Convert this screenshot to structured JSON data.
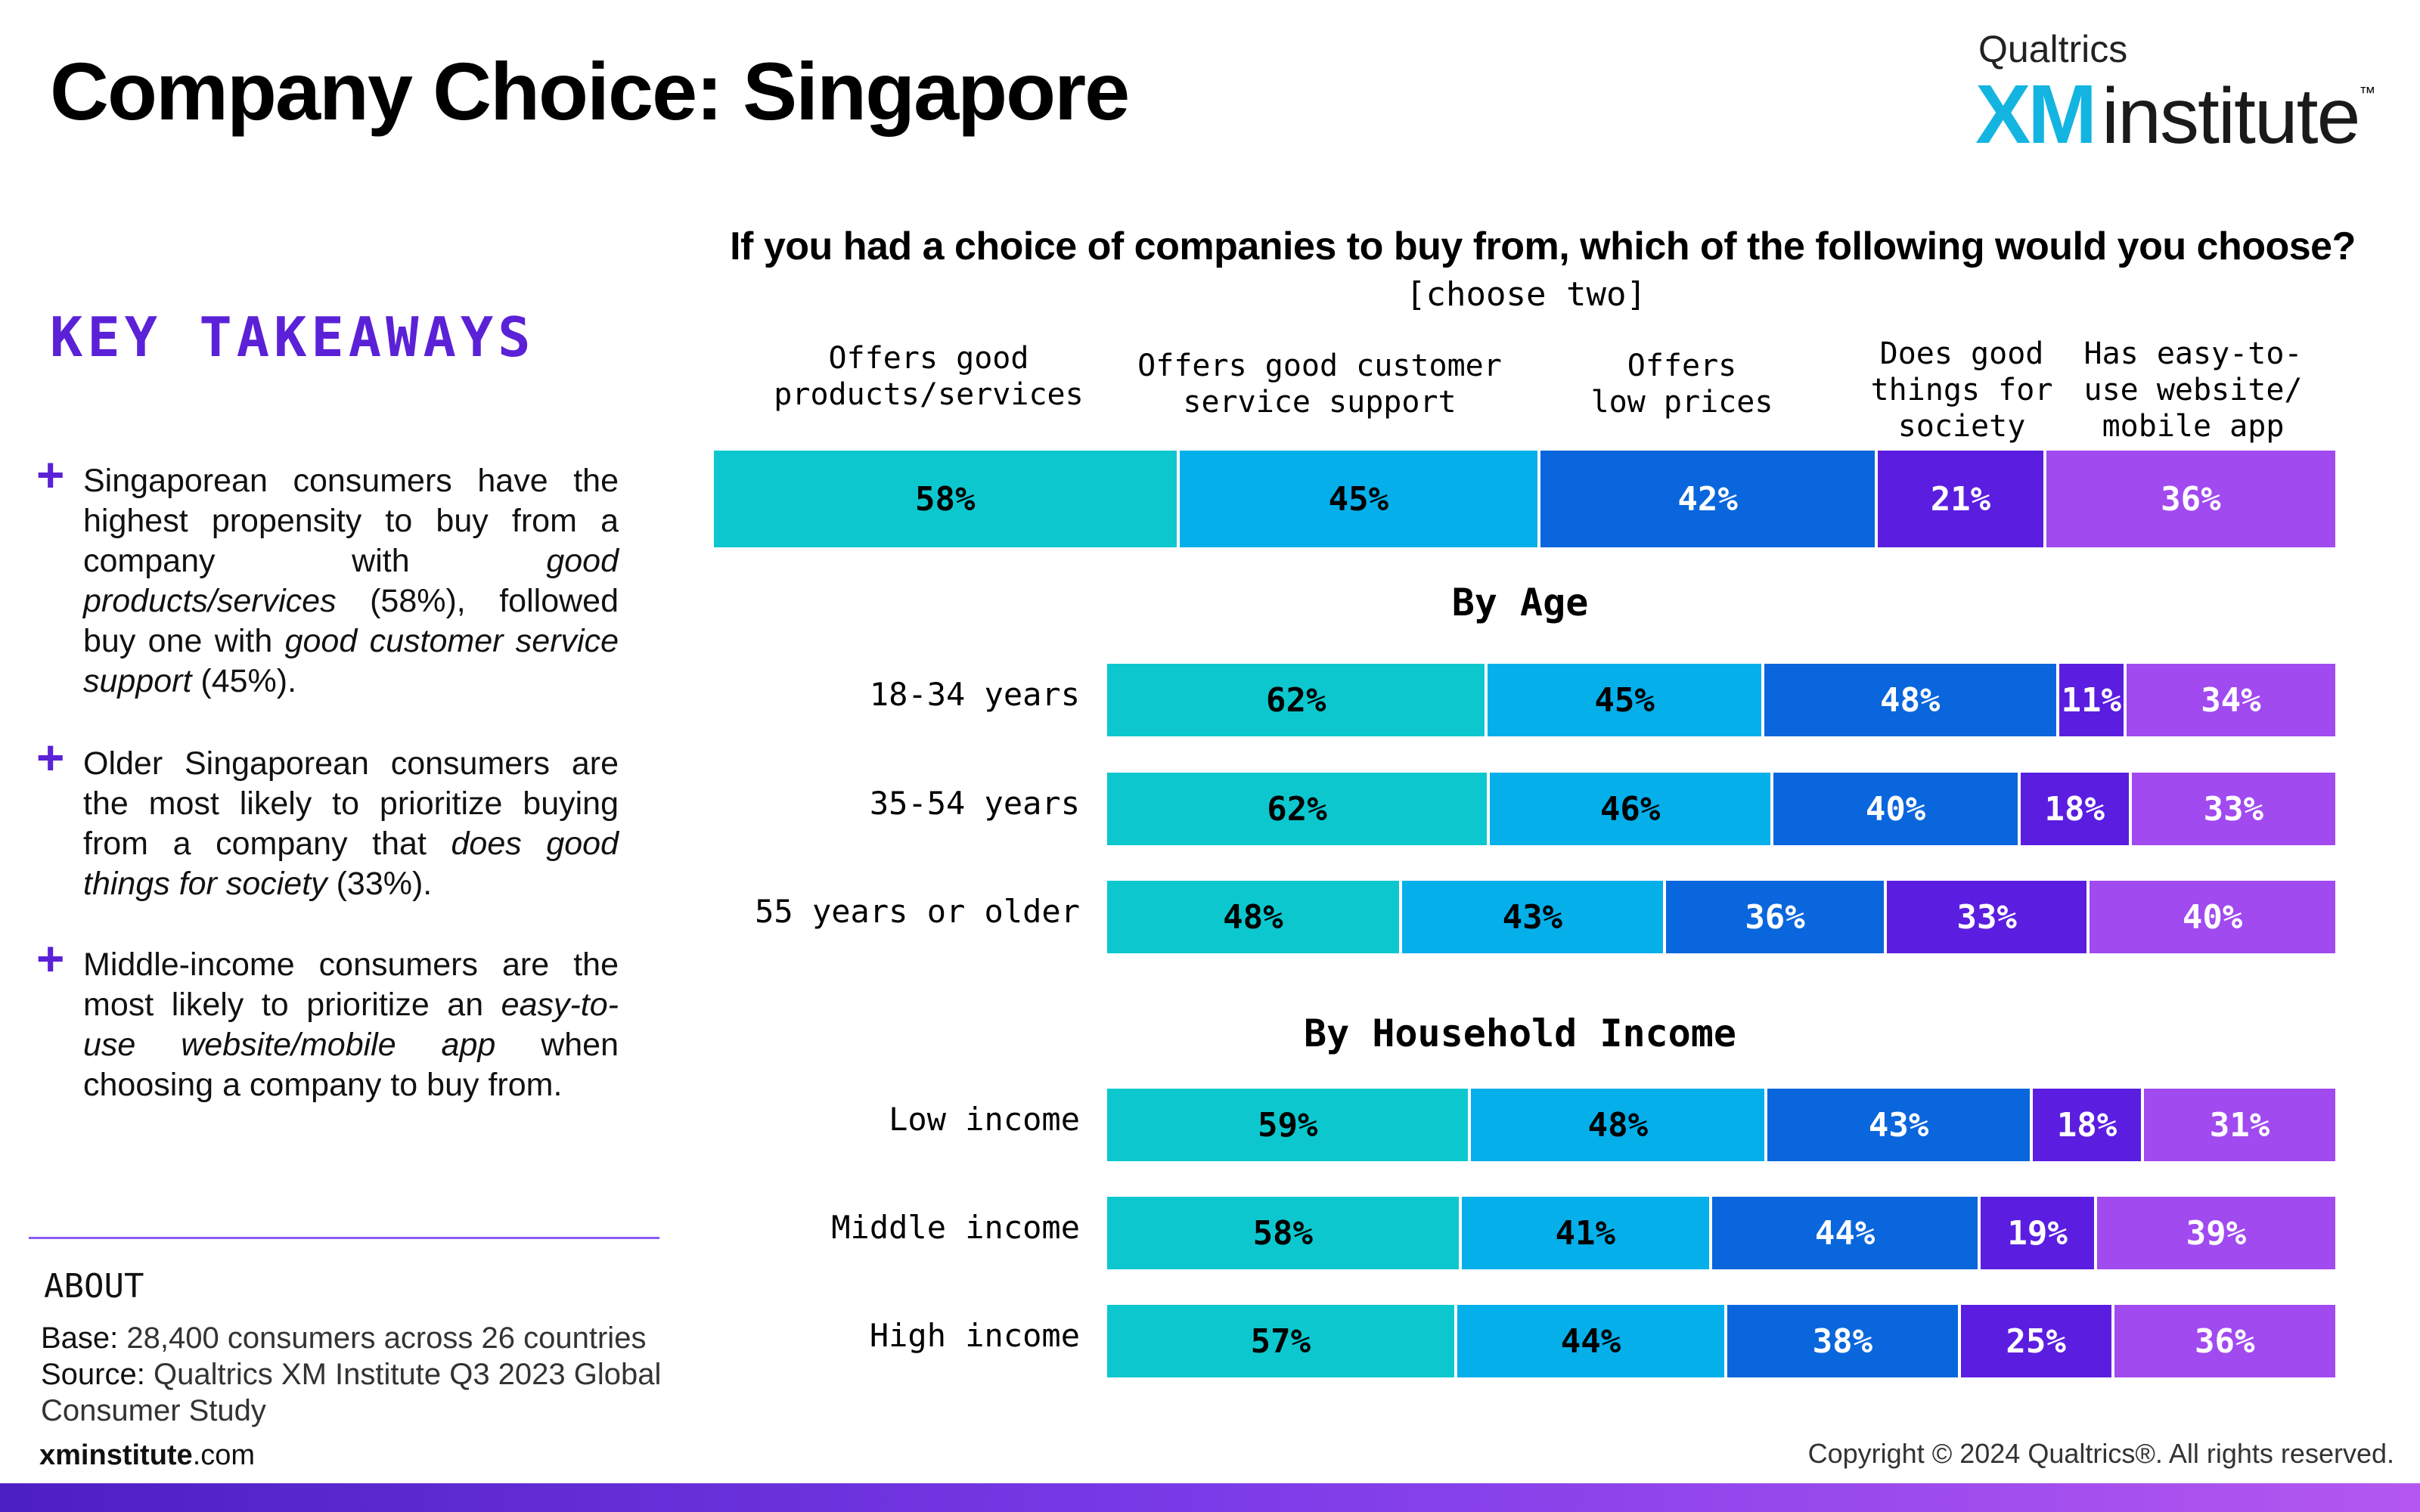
{
  "header": {
    "title": "Company Choice: Singapore",
    "logo": {
      "top": "Qualtrics",
      "brand": "XM",
      "product": "institute",
      "tm": "™"
    }
  },
  "takeaways": {
    "heading": "KEY TAKEAWAYS",
    "items": [
      {
        "segments": [
          {
            "text": "Singaporean consumers have the highest propensity to buy from a company with "
          },
          {
            "text": "good products/services",
            "italic": true
          },
          {
            "text": " (58%), followed buy one with "
          },
          {
            "text": "good customer service support",
            "italic": true
          },
          {
            "text": " (45%)."
          }
        ]
      },
      {
        "segments": [
          {
            "text": "Older Singaporean consumers are the most likely to prioritize buying from a company that "
          },
          {
            "text": "does good things for society",
            "italic": true
          },
          {
            "text": " (33%)."
          }
        ]
      },
      {
        "segments": [
          {
            "text": "Middle-income consumers are the most likely to prioritize an "
          },
          {
            "text": "easy-to-use website/mobile app",
            "italic": true
          },
          {
            "text": " when choosing a company to buy from."
          }
        ]
      }
    ]
  },
  "about": {
    "heading": "ABOUT",
    "base_label": "Base:",
    "base_text": " 28,400 consumers across 26 countries",
    "source_label": "Source:",
    "source_text_1": " Qualtrics XM Institute Q3 2023 Global",
    "source_text_2": "Consumer Study"
  },
  "footer": {
    "website_bold": "xminstitute",
    "website_rest": ".com",
    "copyright": "Copyright © 2024 Qualtrics®. All rights reserved."
  },
  "chart_data": {
    "type": "bar",
    "stacked": true,
    "orientation": "horizontal",
    "title": "If you had a choice of companies to buy from, which of the following would you choose?",
    "subtitle": "[choose two]",
    "categories": [
      "Offers good products/services",
      "Offers good customer service support",
      "Offers low prices",
      "Does good things for society",
      "Has easy-to-use website/ mobile app"
    ],
    "category_header_text": [
      "Offers good\nproducts/services",
      "Offers good customer\nservice support",
      "Offers\nlow prices",
      "Does good\nthings for\nsociety",
      "Has easy-to-\nuse website/\nmobile app"
    ],
    "colors": [
      "#0cc8ce",
      "#05afea",
      "#0a66dc",
      "#5b1ee0",
      "#a14af0"
    ],
    "label_colors": [
      "#000000",
      "#000000",
      "#ffffff",
      "#ffffff",
      "#ffffff"
    ],
    "value_suffix": "%",
    "overall": {
      "label": "",
      "values": [
        58,
        45,
        42,
        21,
        36
      ]
    },
    "groups": [
      {
        "title": "By Age",
        "rows": [
          {
            "label": "18-34 years",
            "values": [
              62,
              45,
              48,
              11,
              34
            ]
          },
          {
            "label": "35-54 years",
            "values": [
              62,
              46,
              40,
              18,
              33
            ]
          },
          {
            "label": "55 years or older",
            "values": [
              48,
              43,
              36,
              33,
              40
            ]
          }
        ]
      },
      {
        "title": "By Household Income",
        "rows": [
          {
            "label": "Low income",
            "values": [
              59,
              48,
              43,
              18,
              31
            ]
          },
          {
            "label": "Middle income",
            "values": [
              58,
              41,
              44,
              19,
              39
            ]
          },
          {
            "label": "High income",
            "values": [
              57,
              44,
              38,
              25,
              36
            ]
          }
        ]
      }
    ]
  }
}
